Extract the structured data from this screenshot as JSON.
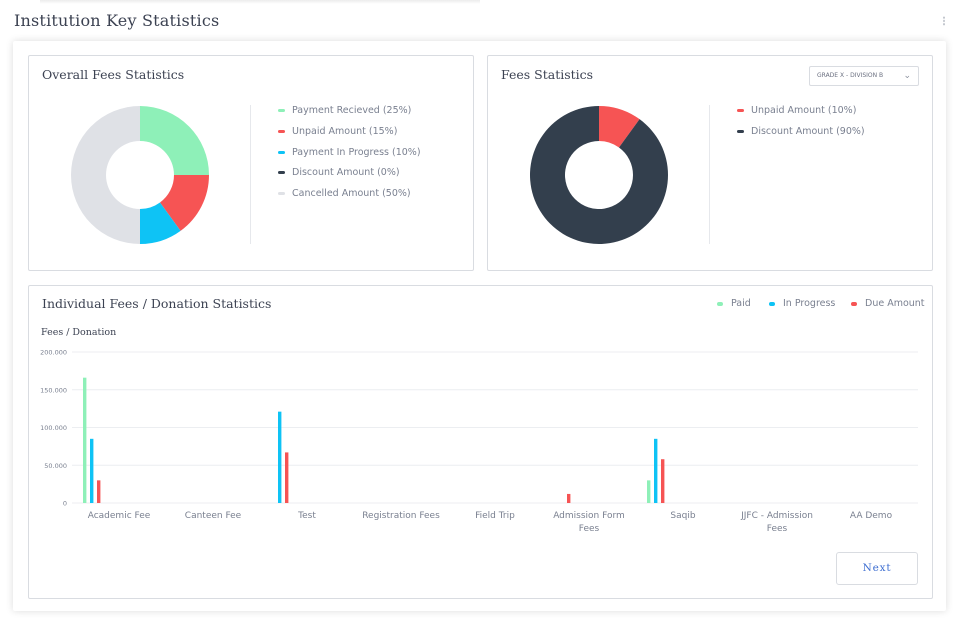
{
  "page": {
    "title": "Institution Key Statistics"
  },
  "overall": {
    "title": "Overall Fees Statistics",
    "legend": [
      {
        "label": "Payment Recieved (25%)",
        "color": "#8ef0b8"
      },
      {
        "label": "Unpaid Amount (15%)",
        "color": "#f65454"
      },
      {
        "label": "Payment In Progress (10%)",
        "color": "#0ec3f5"
      },
      {
        "label": "Discount Amount (0%)",
        "color": "#333f4d"
      },
      {
        "label": "Cancelled Amount (50%)",
        "color": "#dfe1e6"
      }
    ]
  },
  "fees": {
    "title": "Fees Statistics",
    "select_value": "GRADE X - DIVISION B",
    "legend": [
      {
        "label": "Unpaid Amount (10%)",
        "color": "#f65454"
      },
      {
        "label": "Discount Amount (90%)",
        "color": "#333f4d"
      }
    ]
  },
  "individual": {
    "title": "Individual Fees / Donation Statistics",
    "ylabel": "Fees / Donation",
    "legend": [
      {
        "label": "Paid",
        "color": "#8ef0b8"
      },
      {
        "label": "In Progress",
        "color": "#0ec3f5"
      },
      {
        "label": "Due Amount",
        "color": "#f65454"
      }
    ],
    "next_label": "Next"
  },
  "chart_data": [
    {
      "type": "pie",
      "title": "Overall Fees Statistics",
      "labels": [
        "Payment Recieved",
        "Unpaid Amount",
        "Payment In Progress",
        "Discount Amount",
        "Cancelled Amount"
      ],
      "values": [
        25,
        15,
        10,
        0,
        50
      ],
      "colors": [
        "#8ef0b8",
        "#f65454",
        "#0ec3f5",
        "#333f4d",
        "#dfe1e6"
      ]
    },
    {
      "type": "pie",
      "title": "Fees Statistics",
      "labels": [
        "Unpaid Amount",
        "Discount Amount"
      ],
      "values": [
        10,
        90
      ],
      "colors": [
        "#f65454",
        "#333f4d"
      ]
    },
    {
      "type": "bar",
      "title": "Individual Fees / Donation Statistics",
      "ylabel": "Fees / Donation",
      "categories": [
        "Academic Fee",
        "Canteen Fee",
        "Test",
        "Registration Fees",
        "Field Trip",
        "Admission Form Fees",
        "Saqib",
        "JJFC - Admission Fees",
        "AA Demo"
      ],
      "category_lines": [
        [
          "Academic Fee"
        ],
        [
          "Canteen Fee"
        ],
        [
          "Test"
        ],
        [
          "Registration Fees"
        ],
        [
          "Field Trip"
        ],
        [
          "Admission Form",
          "Fees"
        ],
        [
          "Saqib"
        ],
        [
          "JJFC - Admission",
          "Fees"
        ],
        [
          "AA Demo"
        ]
      ],
      "series": [
        {
          "name": "Paid",
          "color": "#8ef0b8",
          "values": [
            166000,
            0,
            0,
            0,
            0,
            0,
            30000,
            0,
            0
          ]
        },
        {
          "name": "In Progress",
          "color": "#0ec3f5",
          "values": [
            85000,
            0,
            121000,
            0,
            0,
            0,
            85000,
            0,
            0
          ]
        },
        {
          "name": "Due Amount",
          "color": "#f65454",
          "values": [
            30000,
            0,
            67000,
            0,
            0,
            12000,
            58000,
            0,
            0
          ]
        }
      ],
      "yticks": [
        0,
        50000,
        100000,
        150000,
        200000
      ],
      "ytick_labels": [
        "0",
        "50.000",
        "100.000",
        "150.000",
        "200.000"
      ],
      "ylim": [
        0,
        200000
      ],
      "grid": true,
      "legend_position": "top-right"
    }
  ]
}
